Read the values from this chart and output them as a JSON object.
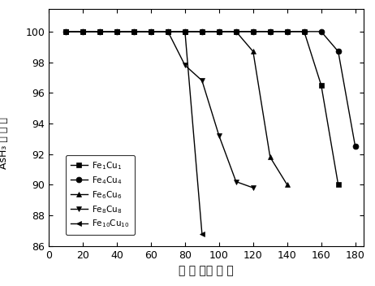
{
  "title": "",
  "xlabel": "时 间 （分 钟 ）",
  "ylabel_lines": [
    "AsH₃",
    "去",
    "除",
    "率"
  ],
  "xlim": [
    0,
    185
  ],
  "ylim": [
    86,
    101.5
  ],
  "yticks": [
    86,
    88,
    90,
    92,
    94,
    96,
    98,
    100
  ],
  "xticks": [
    0,
    20,
    40,
    60,
    80,
    100,
    120,
    140,
    160,
    180
  ],
  "series": [
    {
      "label": "Fe$_1$Cu$_1$",
      "marker": "s",
      "x": [
        10,
        20,
        30,
        40,
        50,
        60,
        70,
        80,
        90,
        100,
        110,
        120,
        130,
        140,
        150,
        160,
        170
      ],
      "y": [
        100,
        100,
        100,
        100,
        100,
        100,
        100,
        100,
        100,
        100,
        100,
        100,
        100,
        100,
        100,
        96.5,
        90.0
      ]
    },
    {
      "label": "Fe$_4$Cu$_4$",
      "marker": "o",
      "x": [
        10,
        20,
        30,
        40,
        50,
        60,
        70,
        80,
        90,
        100,
        110,
        120,
        130,
        140,
        150,
        160,
        170,
        180
      ],
      "y": [
        100,
        100,
        100,
        100,
        100,
        100,
        100,
        100,
        100,
        100,
        100,
        100,
        100,
        100,
        100,
        100,
        98.7,
        92.5
      ]
    },
    {
      "label": "Fe$_6$Cu$_6$",
      "marker": "^",
      "x": [
        10,
        20,
        30,
        40,
        50,
        60,
        70,
        80,
        90,
        100,
        110,
        120,
        130,
        140
      ],
      "y": [
        100,
        100,
        100,
        100,
        100,
        100,
        100,
        100,
        100,
        100,
        100,
        98.7,
        91.8,
        90.0
      ]
    },
    {
      "label": "Fe$_8$Cu$_8$",
      "marker": "v",
      "x": [
        10,
        20,
        30,
        40,
        50,
        60,
        70,
        80,
        90,
        100,
        110,
        120
      ],
      "y": [
        100,
        100,
        100,
        100,
        100,
        100,
        100,
        97.8,
        96.8,
        93.2,
        90.2,
        89.8
      ]
    },
    {
      "label": "Fe$_{10}$Cu$_{10}$",
      "marker": "<",
      "x": [
        10,
        20,
        30,
        40,
        50,
        60,
        70,
        80,
        90
      ],
      "y": [
        100,
        100,
        100,
        100,
        100,
        100,
        100,
        100,
        86.8
      ]
    }
  ],
  "background_color": "#ffffff"
}
